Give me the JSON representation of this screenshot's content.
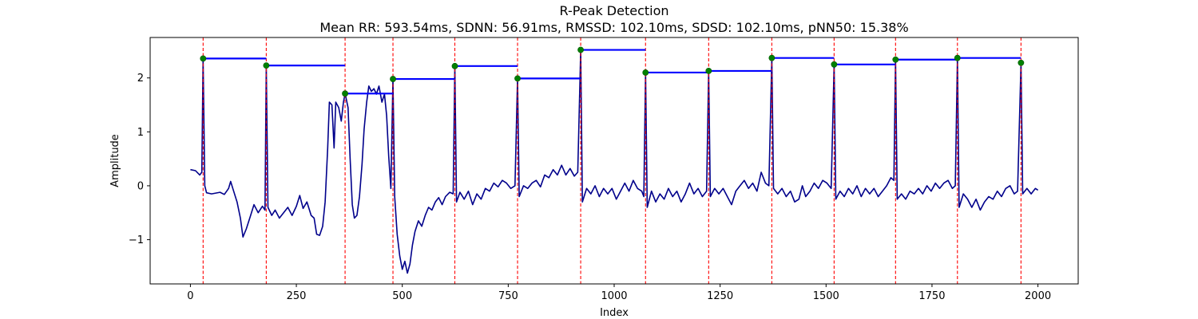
{
  "chart_data": {
    "type": "line",
    "title": "R-Peak Detection",
    "subtitle": "Mean RR: 593.54ms, SDNN: 56.91ms, RMSSD: 102.10ms, SDSD: 102.10ms, pNN50: 15.38%",
    "xlabel": "Index",
    "ylabel": "Amplitude",
    "xlim": [
      -95,
      2095
    ],
    "ylim": [
      -1.82,
      2.75
    ],
    "xticks": [
      0,
      250,
      500,
      750,
      1000,
      1250,
      1500,
      1750,
      2000
    ],
    "yticks": [
      -1,
      0,
      1,
      2
    ],
    "grid": false,
    "colors": {
      "signal": "#00008b",
      "rpeak_line": "#ff0000",
      "peak_marker": "#008000",
      "rr_segment": "#0000ff"
    },
    "r_peaks": [
      {
        "x": 30,
        "y": 2.36
      },
      {
        "x": 179,
        "y": 2.23
      },
      {
        "x": 365,
        "y": 1.71
      },
      {
        "x": 478,
        "y": 1.98
      },
      {
        "x": 624,
        "y": 2.22
      },
      {
        "x": 772,
        "y": 1.99
      },
      {
        "x": 921,
        "y": 2.52
      },
      {
        "x": 1074,
        "y": 2.1
      },
      {
        "x": 1223,
        "y": 2.13
      },
      {
        "x": 1372,
        "y": 2.37
      },
      {
        "x": 1519,
        "y": 2.25
      },
      {
        "x": 1664,
        "y": 2.34
      },
      {
        "x": 1810,
        "y": 2.37
      },
      {
        "x": 1960,
        "y": 2.28
      }
    ],
    "signal_keypoints": [
      [
        0,
        0.3
      ],
      [
        12,
        0.28
      ],
      [
        22,
        0.2
      ],
      [
        27,
        0.25
      ],
      [
        30,
        2.36
      ],
      [
        34,
        0.0
      ],
      [
        38,
        -0.13
      ],
      [
        50,
        -0.15
      ],
      [
        70,
        -0.12
      ],
      [
        80,
        -0.16
      ],
      [
        90,
        -0.05
      ],
      [
        95,
        0.08
      ],
      [
        100,
        -0.05
      ],
      [
        110,
        -0.3
      ],
      [
        118,
        -0.6
      ],
      [
        124,
        -0.95
      ],
      [
        132,
        -0.8
      ],
      [
        142,
        -0.55
      ],
      [
        150,
        -0.35
      ],
      [
        160,
        -0.5
      ],
      [
        170,
        -0.38
      ],
      [
        176,
        -0.45
      ],
      [
        179,
        2.23
      ],
      [
        183,
        -0.4
      ],
      [
        192,
        -0.55
      ],
      [
        200,
        -0.45
      ],
      [
        210,
        -0.6
      ],
      [
        220,
        -0.5
      ],
      [
        230,
        -0.4
      ],
      [
        240,
        -0.55
      ],
      [
        250,
        -0.38
      ],
      [
        258,
        -0.18
      ],
      [
        266,
        -0.42
      ],
      [
        275,
        -0.3
      ],
      [
        285,
        -0.55
      ],
      [
        292,
        -0.6
      ],
      [
        298,
        -0.9
      ],
      [
        305,
        -0.92
      ],
      [
        312,
        -0.75
      ],
      [
        318,
        -0.3
      ],
      [
        324,
        0.7
      ],
      [
        328,
        1.55
      ],
      [
        334,
        1.5
      ],
      [
        339,
        0.7
      ],
      [
        343,
        1.55
      ],
      [
        350,
        1.45
      ],
      [
        356,
        1.2
      ],
      [
        361,
        1.55
      ],
      [
        365,
        1.71
      ],
      [
        372,
        1.45
      ],
      [
        377,
        0.5
      ],
      [
        382,
        -0.35
      ],
      [
        387,
        -0.6
      ],
      [
        393,
        -0.55
      ],
      [
        399,
        -0.2
      ],
      [
        405,
        0.4
      ],
      [
        410,
        1.05
      ],
      [
        416,
        1.55
      ],
      [
        421,
        1.85
      ],
      [
        427,
        1.75
      ],
      [
        433,
        1.8
      ],
      [
        439,
        1.7
      ],
      [
        445,
        1.85
      ],
      [
        452,
        1.55
      ],
      [
        458,
        1.7
      ],
      [
        463,
        1.3
      ],
      [
        468,
        0.55
      ],
      [
        473,
        -0.05
      ],
      [
        478,
        1.98
      ],
      [
        482,
        -0.2
      ],
      [
        488,
        -0.9
      ],
      [
        494,
        -1.3
      ],
      [
        500,
        -1.55
      ],
      [
        506,
        -1.4
      ],
      [
        512,
        -1.62
      ],
      [
        518,
        -1.45
      ],
      [
        524,
        -1.1
      ],
      [
        530,
        -0.85
      ],
      [
        538,
        -0.65
      ],
      [
        546,
        -0.75
      ],
      [
        554,
        -0.55
      ],
      [
        562,
        -0.4
      ],
      [
        570,
        -0.45
      ],
      [
        578,
        -0.3
      ],
      [
        586,
        -0.22
      ],
      [
        594,
        -0.35
      ],
      [
        602,
        -0.2
      ],
      [
        612,
        -0.12
      ],
      [
        620,
        -0.15
      ],
      [
        624,
        2.22
      ],
      [
        628,
        -0.3
      ],
      [
        636,
        -0.12
      ],
      [
        646,
        -0.25
      ],
      [
        656,
        -0.1
      ],
      [
        666,
        -0.35
      ],
      [
        676,
        -0.15
      ],
      [
        686,
        -0.25
      ],
      [
        696,
        -0.05
      ],
      [
        706,
        -0.1
      ],
      [
        716,
        0.05
      ],
      [
        726,
        -0.02
      ],
      [
        736,
        0.1
      ],
      [
        746,
        0.05
      ],
      [
        756,
        -0.05
      ],
      [
        766,
        0.0
      ],
      [
        772,
        1.99
      ],
      [
        776,
        -0.2
      ],
      [
        786,
        0.0
      ],
      [
        796,
        -0.05
      ],
      [
        806,
        0.05
      ],
      [
        816,
        0.1
      ],
      [
        826,
        -0.02
      ],
      [
        836,
        0.2
      ],
      [
        846,
        0.15
      ],
      [
        856,
        0.3
      ],
      [
        866,
        0.2
      ],
      [
        876,
        0.38
      ],
      [
        886,
        0.2
      ],
      [
        896,
        0.32
      ],
      [
        906,
        0.18
      ],
      [
        914,
        0.25
      ],
      [
        921,
        2.52
      ],
      [
        925,
        -0.3
      ],
      [
        935,
        -0.05
      ],
      [
        945,
        -0.15
      ],
      [
        955,
        0.0
      ],
      [
        965,
        -0.2
      ],
      [
        975,
        -0.05
      ],
      [
        985,
        -0.15
      ],
      [
        995,
        -0.05
      ],
      [
        1005,
        -0.25
      ],
      [
        1015,
        -0.1
      ],
      [
        1025,
        0.05
      ],
      [
        1035,
        -0.1
      ],
      [
        1045,
        0.1
      ],
      [
        1055,
        -0.05
      ],
      [
        1065,
        -0.1
      ],
      [
        1070,
        -0.2
      ],
      [
        1074,
        2.1
      ],
      [
        1078,
        -0.4
      ],
      [
        1088,
        -0.1
      ],
      [
        1098,
        -0.3
      ],
      [
        1108,
        -0.15
      ],
      [
        1118,
        -0.25
      ],
      [
        1128,
        -0.05
      ],
      [
        1138,
        -0.2
      ],
      [
        1148,
        -0.1
      ],
      [
        1158,
        -0.3
      ],
      [
        1168,
        -0.15
      ],
      [
        1178,
        0.05
      ],
      [
        1188,
        -0.15
      ],
      [
        1198,
        -0.05
      ],
      [
        1208,
        -0.2
      ],
      [
        1218,
        -0.1
      ],
      [
        1223,
        2.13
      ],
      [
        1227,
        -0.2
      ],
      [
        1237,
        -0.05
      ],
      [
        1247,
        -0.15
      ],
      [
        1257,
        -0.05
      ],
      [
        1267,
        -0.2
      ],
      [
        1277,
        -0.35
      ],
      [
        1287,
        -0.1
      ],
      [
        1297,
        0.0
      ],
      [
        1307,
        0.1
      ],
      [
        1317,
        -0.05
      ],
      [
        1327,
        0.05
      ],
      [
        1337,
        -0.1
      ],
      [
        1347,
        0.25
      ],
      [
        1357,
        0.05
      ],
      [
        1365,
        0.0
      ],
      [
        1372,
        2.37
      ],
      [
        1376,
        -0.05
      ],
      [
        1386,
        -0.15
      ],
      [
        1396,
        -0.05
      ],
      [
        1406,
        -0.2
      ],
      [
        1416,
        -0.1
      ],
      [
        1426,
        -0.3
      ],
      [
        1436,
        -0.25
      ],
      [
        1444,
        0.0
      ],
      [
        1452,
        -0.2
      ],
      [
        1462,
        -0.1
      ],
      [
        1472,
        0.05
      ],
      [
        1482,
        -0.05
      ],
      [
        1492,
        0.1
      ],
      [
        1502,
        0.05
      ],
      [
        1512,
        -0.05
      ],
      [
        1519,
        2.25
      ],
      [
        1523,
        -0.25
      ],
      [
        1533,
        -0.1
      ],
      [
        1543,
        -0.2
      ],
      [
        1553,
        -0.05
      ],
      [
        1563,
        -0.15
      ],
      [
        1573,
        0.0
      ],
      [
        1583,
        -0.2
      ],
      [
        1593,
        -0.05
      ],
      [
        1603,
        -0.15
      ],
      [
        1613,
        -0.05
      ],
      [
        1623,
        -0.2
      ],
      [
        1633,
        -0.1
      ],
      [
        1643,
        0.0
      ],
      [
        1653,
        0.15
      ],
      [
        1660,
        0.1
      ],
      [
        1664,
        2.34
      ],
      [
        1668,
        -0.25
      ],
      [
        1678,
        -0.15
      ],
      [
        1688,
        -0.25
      ],
      [
        1698,
        -0.1
      ],
      [
        1708,
        -0.15
      ],
      [
        1718,
        -0.05
      ],
      [
        1728,
        -0.15
      ],
      [
        1738,
        0.0
      ],
      [
        1748,
        -0.1
      ],
      [
        1758,
        0.05
      ],
      [
        1768,
        -0.05
      ],
      [
        1778,
        0.05
      ],
      [
        1788,
        0.1
      ],
      [
        1798,
        -0.05
      ],
      [
        1805,
        0.0
      ],
      [
        1810,
        2.37
      ],
      [
        1814,
        -0.4
      ],
      [
        1824,
        -0.15
      ],
      [
        1834,
        -0.25
      ],
      [
        1844,
        -0.4
      ],
      [
        1854,
        -0.25
      ],
      [
        1864,
        -0.45
      ],
      [
        1874,
        -0.3
      ],
      [
        1884,
        -0.2
      ],
      [
        1894,
        -0.25
      ],
      [
        1904,
        -0.1
      ],
      [
        1914,
        -0.2
      ],
      [
        1924,
        -0.05
      ],
      [
        1934,
        0.0
      ],
      [
        1944,
        -0.15
      ],
      [
        1952,
        -0.1
      ],
      [
        1960,
        2.28
      ],
      [
        1964,
        -0.15
      ],
      [
        1974,
        -0.05
      ],
      [
        1984,
        -0.15
      ],
      [
        1994,
        -0.05
      ],
      [
        2000,
        -0.08
      ]
    ]
  }
}
